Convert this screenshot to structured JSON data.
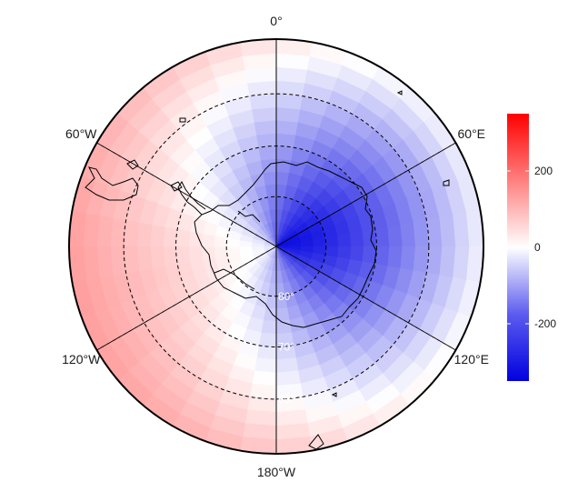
{
  "map": {
    "longitude_labels": [
      {
        "text": "0°",
        "angle": 0
      },
      {
        "text": "60°E",
        "angle": 60
      },
      {
        "text": "120°E",
        "angle": 120
      },
      {
        "text": "180°W",
        "angle": 180
      },
      {
        "text": "120°W",
        "angle": 240
      },
      {
        "text": "60°W",
        "angle": 300
      }
    ],
    "latitude_labels": [
      {
        "text": "80°",
        "lat": -80
      },
      {
        "text": "70°",
        "lat": -70
      },
      {
        "text": "60°",
        "lat": -60
      }
    ],
    "projection": "south-polar-stereographic",
    "outer_latitude": -50,
    "coastline_color": "#000000",
    "graticule_style": "dashed"
  },
  "colorbar": {
    "ticks": [
      {
        "label": "200",
        "value": 200
      },
      {
        "label": "0",
        "value": 0
      },
      {
        "label": "-200",
        "value": -200
      }
    ],
    "min": -350,
    "max": 350,
    "low_color": "#0000e0",
    "mid_color": "#ffffff",
    "high_color": "#ff0000"
  }
}
